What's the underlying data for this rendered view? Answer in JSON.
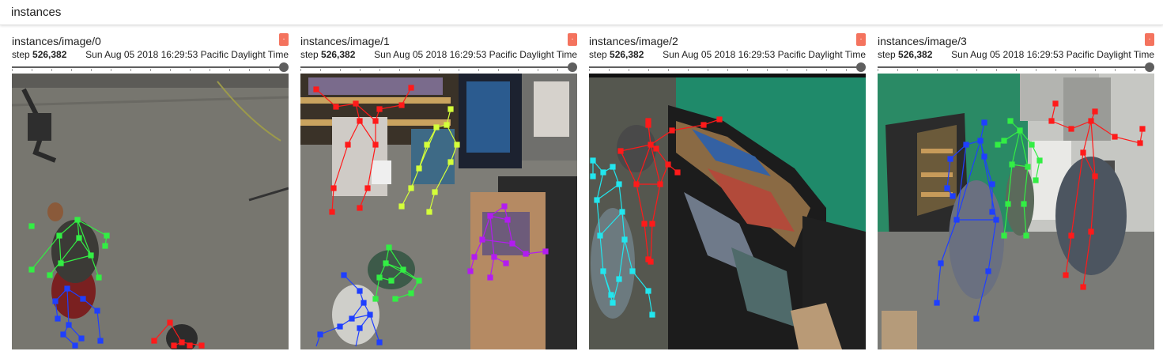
{
  "section": {
    "title": "instances"
  },
  "cards": [
    {
      "title": "instances/image/0",
      "step_label": "step",
      "step_value": "526,382",
      "timestamp": "Sun Aug 05 2018 16:29:53 Pacific Daylight Time",
      "badge": ".",
      "slider_fraction": 1.0
    },
    {
      "title": "instances/image/1",
      "step_label": "step",
      "step_value": "526,382",
      "timestamp": "Sun Aug 05 2018 16:29:53 Pacific Daylight Time",
      "badge": ".",
      "slider_fraction": 1.0
    },
    {
      "title": "instances/image/2",
      "step_label": "step",
      "step_value": "526,382",
      "timestamp": "Sun Aug 05 2018 16:29:53 Pacific Daylight Time",
      "badge": ".",
      "slider_fraction": 1.0
    },
    {
      "title": "instances/image/3",
      "step_label": "step",
      "step_value": "526,382",
      "timestamp": "Sun Aug 05 2018 16:29:53 Pacific Daylight Time",
      "badge": ".",
      "slider_fraction": 1.0
    }
  ],
  "colors": {
    "badge": "#f4735e",
    "skeleton_green": "#33ee44",
    "skeleton_blue": "#1f3fff",
    "skeleton_red": "#ff1a1a",
    "skeleton_yellow": "#d4ff3a",
    "skeleton_purple": "#b21cf0",
    "skeleton_cyan": "#22e6ee"
  }
}
